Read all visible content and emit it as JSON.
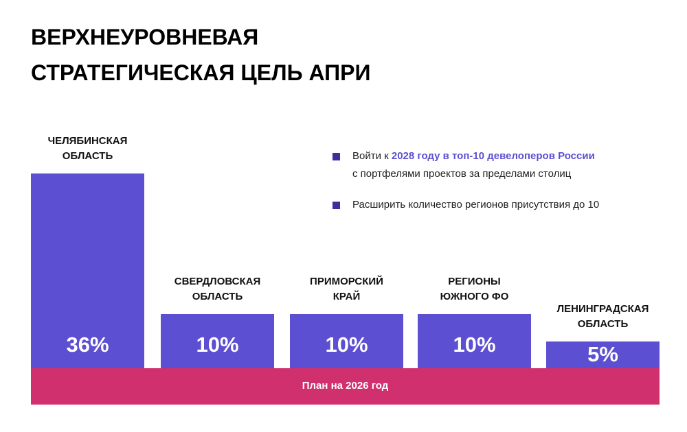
{
  "chart_data": {
    "type": "bar",
    "title": [
      "ВЕРХНЕУРОВНЕВАЯ",
      "СТРАТЕГИЧЕСКАЯ ЦЕЛЬ АПРИ"
    ],
    "categories": [
      "ЧЕЛЯБИНСКАЯ\nОБЛАСТЬ",
      "СВЕРДЛОВСКАЯ\nОБЛАСТЬ",
      "ПРИМОРСКИЙ\nКРАЙ",
      "РЕГИОНЫ\nЮЖНОГО ФО",
      "ЛЕНИНГРАДСКАЯ\nОБЛАСТЬ"
    ],
    "values": [
      36,
      10,
      10,
      10,
      5
    ],
    "value_labels": [
      "36%",
      "10%",
      "10%",
      "10%",
      "5%"
    ],
    "color": "#5d4fd1",
    "band_label": "План на 2026 год",
    "band_color": "#d0306e",
    "annotations": [
      [
        "Войти к ",
        "2028 году в топ-10 девелоперов России",
        "с портфелями проектов за пределами столиц"
      ],
      [
        "Расширить количество регионов присутствия до 10"
      ]
    ],
    "annotation_color": "#3d2f9c"
  }
}
